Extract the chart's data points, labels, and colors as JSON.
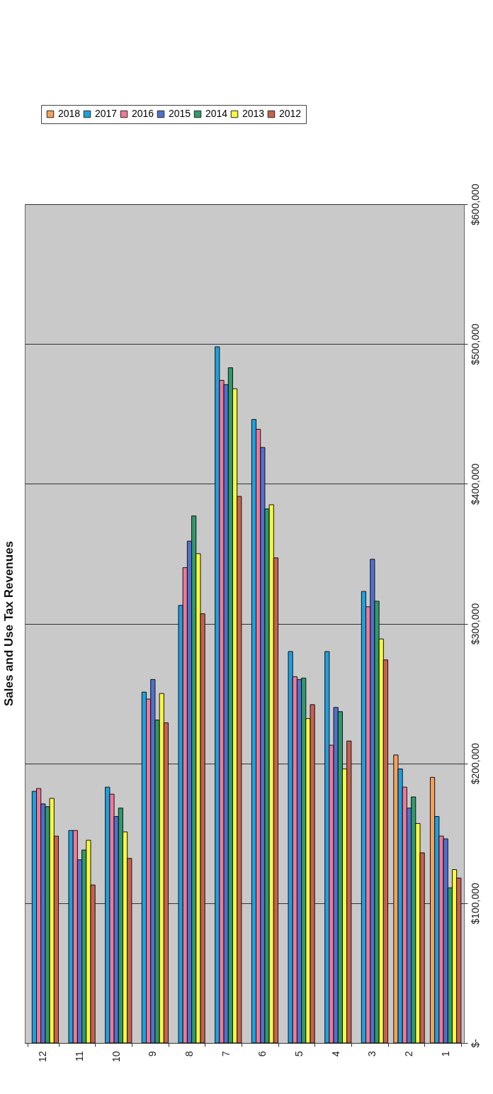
{
  "chart_data": {
    "type": "bar",
    "title": "Sales and Use Tax Revenues",
    "categories": [
      "12",
      "11",
      "10",
      "9",
      "8",
      "7",
      "6",
      "5",
      "4",
      "3",
      "2",
      "1"
    ],
    "series": [
      {
        "name": "2018",
        "color": "#f5a05a",
        "values": [
          null,
          null,
          null,
          null,
          null,
          null,
          null,
          null,
          null,
          null,
          206000,
          190000
        ]
      },
      {
        "name": "2017",
        "color": "#1ea0e0",
        "values": [
          180000,
          152000,
          183000,
          251000,
          313000,
          498000,
          446000,
          280000,
          280000,
          323000,
          196000,
          162000
        ]
      },
      {
        "name": "2016",
        "color": "#f07898",
        "values": [
          182000,
          152000,
          178000,
          246000,
          340000,
          474000,
          439000,
          262000,
          213000,
          312000,
          183000,
          148000
        ]
      },
      {
        "name": "2015",
        "color": "#5070d0",
        "values": [
          171000,
          131000,
          162000,
          260000,
          359000,
          471000,
          426000,
          260000,
          240000,
          346000,
          168000,
          146000
        ]
      },
      {
        "name": "2014",
        "color": "#2e9a6a",
        "values": [
          169000,
          138000,
          168000,
          231000,
          377000,
          483000,
          382000,
          261000,
          237000,
          316000,
          176000,
          111000
        ]
      },
      {
        "name": "2013",
        "color": "#f8f840",
        "values": [
          175000,
          145000,
          151000,
          250000,
          350000,
          468000,
          385000,
          232000,
          196000,
          289000,
          157000,
          124000
        ]
      },
      {
        "name": "2012",
        "color": "#c86050",
        "values": [
          148000,
          113000,
          132000,
          229000,
          307000,
          391000,
          347000,
          242000,
          216000,
          274000,
          136000,
          118000
        ]
      }
    ],
    "ylim": [
      0,
      600000
    ],
    "yticks": [
      {
        "value": 0,
        "label": "$-"
      },
      {
        "value": 100000,
        "label": "$100,000"
      },
      {
        "value": 200000,
        "label": "$200,000"
      },
      {
        "value": 300000,
        "label": "$300,000"
      },
      {
        "value": 400000,
        "label": "$400,000"
      },
      {
        "value": 500000,
        "label": "$500,000"
      },
      {
        "value": 600000,
        "label": "$600,000"
      }
    ],
    "grid": "y",
    "legend": "top left"
  }
}
